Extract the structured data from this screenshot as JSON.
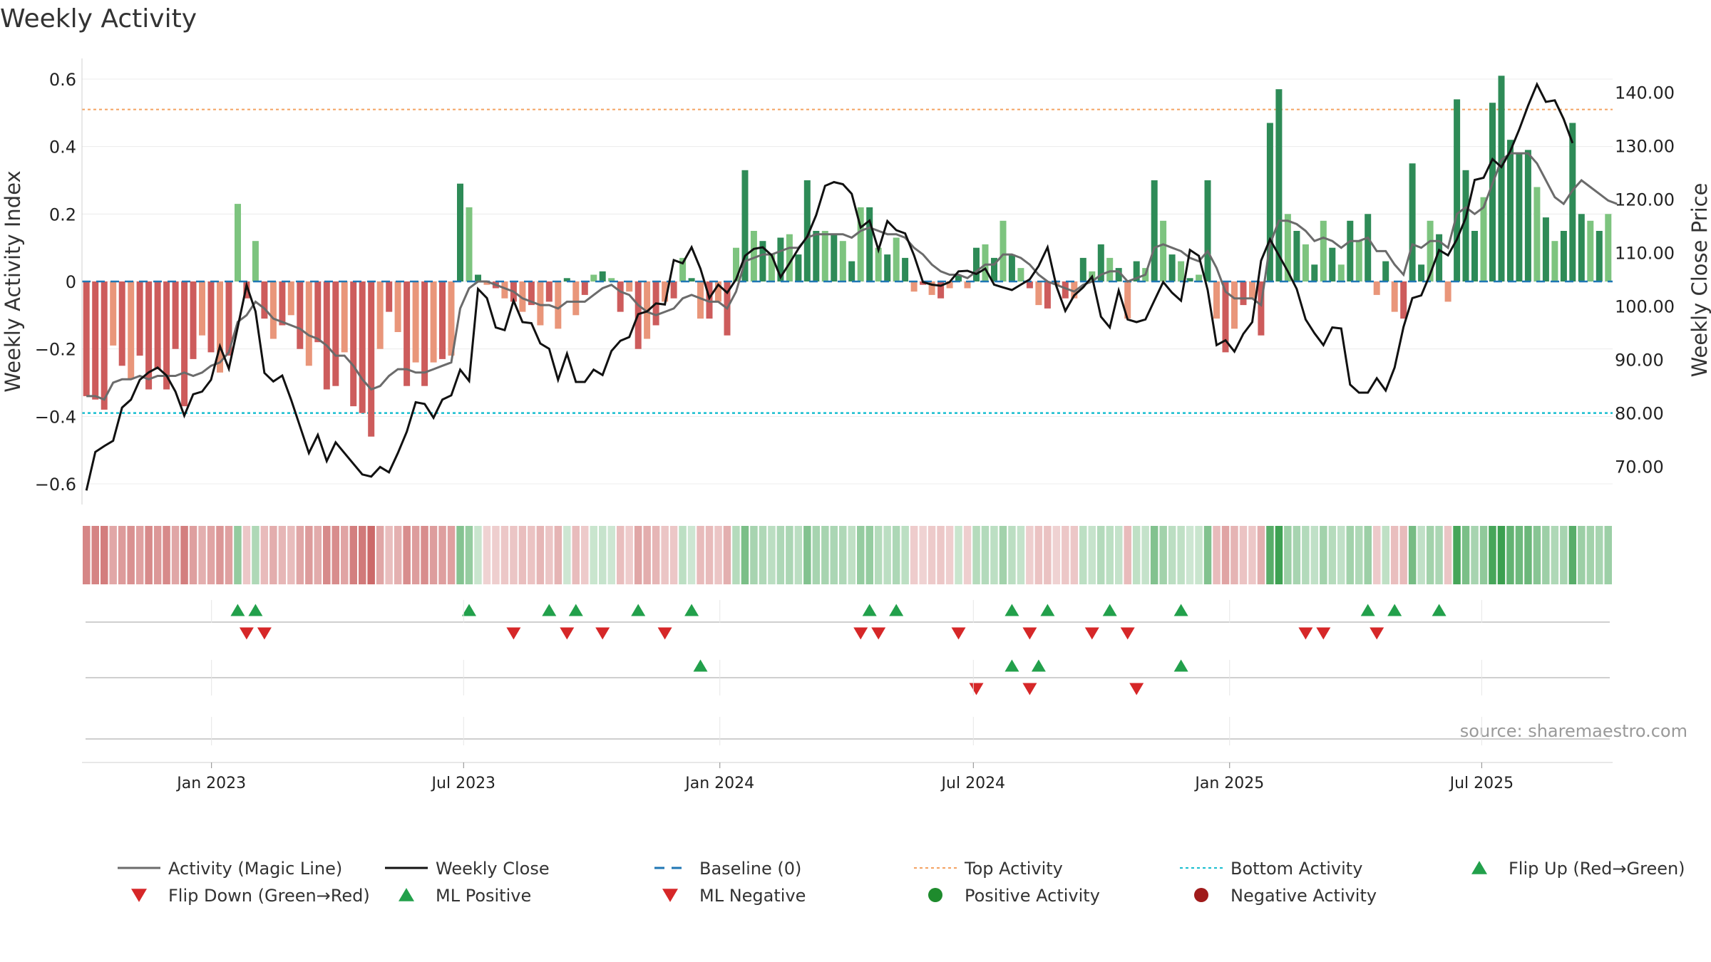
{
  "title": "Weekly Activity",
  "source": "source: sharemaestro.com",
  "colors": {
    "magic_line": "#6b6b6b",
    "close_line": "#111111",
    "baseline": "#1f77b4",
    "top_line": "#f4a261",
    "bottom_line": "#17becf",
    "pos_dark": "#2e8b57",
    "pos_light": "#7dc47f",
    "neg_dark": "#cd5c5c",
    "neg_light": "#e9967a",
    "marker_up": "#22a04b",
    "marker_down": "#d62728",
    "pos_dot": "#1e8b2d",
    "neg_dot": "#a01b1b"
  },
  "chart_data": {
    "type": "bar",
    "title": "Weekly Activity",
    "ylabel_left": "Weekly Activity Index",
    "ylabel_right": "Weekly Close Price",
    "ylim_left": [
      -0.65,
      0.63
    ],
    "ylim_right": [
      63.4,
      146.3
    ],
    "yticks_left": [
      "0.6",
      "0.4",
      "0.2",
      "0",
      "−0.2",
      "−0.4",
      "−0.6"
    ],
    "yticks_left_values": [
      0.6,
      0.4,
      0.2,
      0,
      -0.2,
      -0.4,
      -0.6
    ],
    "yticks_right": [
      "140.00",
      "130.00",
      "120.00",
      "110.00",
      "100.00",
      "90.00",
      "80.00",
      "70.00"
    ],
    "yticks_right_values": [
      140,
      130,
      120,
      110,
      100,
      90,
      80,
      70
    ],
    "x_start": "2022-09-30",
    "x_end": "2025-10-03",
    "x_ticks": [
      {
        "label": "Jan 2023",
        "date": "2023-01-01"
      },
      {
        "label": "Jul 2023",
        "date": "2023-07-01"
      },
      {
        "label": "Jan 2024",
        "date": "2024-01-01"
      },
      {
        "label": "Jul 2024",
        "date": "2024-07-01"
      },
      {
        "label": "Jan 2025",
        "date": "2025-01-01"
      },
      {
        "label": "Jul 2025",
        "date": "2025-07-01"
      }
    ],
    "top_activity": 0.51,
    "bottom_activity": -0.39,
    "baseline": 0,
    "activity": [
      -0.34,
      -0.35,
      -0.38,
      -0.19,
      -0.25,
      -0.29,
      -0.22,
      -0.32,
      -0.26,
      -0.32,
      -0.2,
      -0.37,
      -0.23,
      -0.16,
      -0.21,
      -0.27,
      -0.22,
      0.23,
      -0.05,
      0.12,
      -0.11,
      -0.17,
      -0.13,
      -0.1,
      -0.2,
      -0.25,
      -0.18,
      -0.32,
      -0.31,
      -0.21,
      -0.37,
      -0.39,
      -0.46,
      -0.2,
      -0.09,
      -0.15,
      -0.31,
      -0.24,
      -0.31,
      -0.24,
      -0.23,
      -0.22,
      0.29,
      0.22,
      0.02,
      -0.01,
      -0.02,
      -0.05,
      -0.06,
      -0.09,
      -0.07,
      -0.13,
      -0.06,
      -0.14,
      0.01,
      -0.1,
      -0.04,
      0.02,
      0.03,
      0.01,
      -0.09,
      -0.03,
      -0.2,
      -0.17,
      -0.13,
      -0.06,
      -0.05,
      0.07,
      0.01,
      -0.11,
      -0.11,
      -0.06,
      -0.16,
      0.1,
      0.33,
      0.15,
      0.12,
      0.08,
      0.13,
      0.14,
      0.08,
      0.3,
      0.15,
      0.15,
      0.14,
      0.12,
      0.06,
      0.22,
      0.22,
      0.1,
      0.08,
      0.13,
      0.07,
      -0.03,
      -0.01,
      -0.04,
      -0.05,
      -0.02,
      0.02,
      -0.02,
      0.1,
      0.11,
      0.07,
      0.18,
      0.08,
      0.04,
      -0.02,
      -0.07,
      -0.08,
      -0.01,
      -0.05,
      -0.05,
      0.07,
      0.03,
      0.11,
      0.07,
      0.04,
      -0.11,
      0.06,
      0.04,
      0.3,
      0.18,
      0.08,
      0.06,
      0.01,
      0.02,
      0.3,
      -0.11,
      -0.21,
      -0.14,
      -0.07,
      -0.05,
      -0.16,
      0.47,
      0.57,
      0.2,
      0.15,
      0.11,
      0.05,
      0.18,
      0.1,
      0.05,
      0.18,
      0.12,
      0.2,
      -0.04,
      0.06,
      -0.09,
      -0.11,
      0.35,
      0.05,
      0.18,
      0.14,
      -0.06,
      0.54,
      0.33,
      0.15,
      0.25,
      0.53,
      0.61,
      0.42,
      0.38,
      0.39,
      0.28,
      0.19,
      0.12,
      0.15,
      0.47,
      0.2,
      0.18,
      0.15,
      0.2
    ],
    "magic_line": [
      -0.34,
      -0.34,
      -0.35,
      -0.3,
      -0.29,
      -0.29,
      -0.28,
      -0.29,
      -0.28,
      -0.28,
      -0.28,
      -0.27,
      -0.28,
      -0.27,
      -0.25,
      -0.24,
      -0.21,
      -0.12,
      -0.1,
      -0.06,
      -0.08,
      -0.11,
      -0.12,
      -0.13,
      -0.14,
      -0.16,
      -0.17,
      -0.19,
      -0.22,
      -0.22,
      -0.25,
      -0.29,
      -0.32,
      -0.31,
      -0.28,
      -0.26,
      -0.26,
      -0.27,
      -0.27,
      -0.26,
      -0.25,
      -0.24,
      -0.08,
      -0.02,
      0,
      0,
      -0.01,
      -0.02,
      -0.03,
      -0.05,
      -0.06,
      -0.07,
      -0.07,
      -0.08,
      -0.06,
      -0.06,
      -0.06,
      -0.04,
      -0.02,
      -0.01,
      -0.03,
      -0.04,
      -0.07,
      -0.09,
      -0.1,
      -0.09,
      -0.08,
      -0.05,
      -0.04,
      -0.05,
      -0.06,
      -0.06,
      -0.08,
      -0.03,
      0.06,
      0.07,
      0.08,
      0.08,
      0.09,
      0.1,
      0.1,
      0.13,
      0.14,
      0.14,
      0.14,
      0.14,
      0.13,
      0.15,
      0.16,
      0.15,
      0.14,
      0.14,
      0.13,
      0.1,
      0.08,
      0.05,
      0.03,
      0.02,
      0.02,
      0.01,
      0.03,
      0.05,
      0.05,
      0.08,
      0.08,
      0.07,
      0.05,
      0.02,
      0,
      -0.01,
      -0.02,
      -0.03,
      -0.01,
      0,
      0.02,
      0.03,
      0.03,
      0,
      0.01,
      0.02,
      0.1,
      0.11,
      0.1,
      0.09,
      0.07,
      0.06,
      0.09,
      0.04,
      -0.03,
      -0.05,
      -0.05,
      -0.05,
      -0.07,
      0.11,
      0.18,
      0.18,
      0.17,
      0.15,
      0.12,
      0.13,
      0.12,
      0.1,
      0.12,
      0.12,
      0.13,
      0.09,
      0.09,
      0.05,
      0.02,
      0.11,
      0.1,
      0.12,
      0.12,
      0.1,
      0.2,
      0.22,
      0.2,
      0.22,
      0.29,
      0.36,
      0.38,
      0.38,
      0.38,
      0.35,
      0.3,
      0.25,
      0.23,
      0.27,
      0.3,
      0.28,
      0.26,
      0.24,
      0.23
    ],
    "close": [
      65.5,
      72.7,
      73.8,
      74.8,
      81,
      82.5,
      86.2,
      87.6,
      88.5,
      87,
      84,
      79.5,
      83.5,
      84,
      86.2,
      92.5,
      88.3,
      96,
      103.9,
      99,
      87.5,
      85.9,
      87,
      82.5,
      77.5,
      72.5,
      75.9,
      71,
      74.5,
      72.5,
      70.5,
      68.5,
      68.1,
      69.9,
      68.9,
      72.5,
      76.5,
      82,
      81.7,
      79.1,
      82.5,
      83.3,
      88.1,
      86,
      103.2,
      101.5,
      96,
      95.5,
      101,
      97,
      96.8,
      93,
      92,
      86.2,
      91.1,
      85.8,
      85.8,
      88.1,
      87.1,
      91.6,
      93.5,
      94.2,
      98.5,
      99,
      100.5,
      100.3,
      108.6,
      108,
      111,
      107,
      101.5,
      104,
      102.5,
      105,
      109.4,
      110.7,
      111,
      109.5,
      105.4,
      108,
      110.7,
      113,
      117,
      122.5,
      123.2,
      122.8,
      121,
      114.7,
      116,
      110.5,
      115.9,
      114.2,
      113.6,
      109.5,
      104.5,
      104,
      103.8,
      104.5,
      106.5,
      106.6,
      106,
      107,
      104,
      103.5,
      103,
      104,
      105,
      107.5,
      111,
      103.7,
      99.1,
      102,
      103.5,
      105.5,
      98,
      96,
      102.9,
      97.5,
      97,
      97.5,
      101,
      104.5,
      102.5,
      101,
      110.5,
      109.4,
      103,
      92.7,
      93.6,
      91.5,
      94.8,
      97,
      108.5,
      112.5,
      109.5,
      106.5,
      103.2,
      97.5,
      94.9,
      92.7,
      96,
      95.8,
      85.3,
      83.8,
      83.8,
      86.5,
      84.2,
      88.5,
      96.1,
      101.5,
      102,
      106,
      110.5,
      109.5,
      112.5,
      116.5,
      123.6,
      124,
      127.5,
      126,
      129,
      133,
      137.5,
      141.5,
      138.2,
      138.5,
      135,
      130.5
    ],
    "heat_values": [
      -0.34,
      -0.35,
      -0.38,
      -0.19,
      -0.25,
      -0.29,
      -0.22,
      -0.32,
      -0.26,
      -0.32,
      -0.2,
      -0.37,
      -0.23,
      -0.16,
      -0.21,
      -0.27,
      -0.22,
      0.23,
      -0.05,
      0.12,
      -0.11,
      -0.17,
      -0.13,
      -0.1,
      -0.2,
      -0.25,
      -0.18,
      -0.32,
      -0.31,
      -0.21,
      -0.37,
      -0.39,
      -0.46,
      -0.2,
      -0.09,
      -0.15,
      -0.31,
      -0.24,
      -0.31,
      -0.24,
      -0.23,
      -0.22,
      0.29,
      0.22,
      0.02,
      -0.01,
      -0.02,
      -0.05,
      -0.06,
      -0.09,
      -0.07,
      -0.13,
      -0.06,
      -0.14,
      0.01,
      -0.1,
      -0.04,
      0.02,
      0.03,
      0.01,
      -0.09,
      -0.03,
      -0.2,
      -0.17,
      -0.13,
      -0.06,
      -0.05,
      0.07,
      0.01,
      -0.11,
      -0.11,
      -0.06,
      -0.16,
      0.1,
      0.33,
      0.15,
      0.12,
      0.08,
      0.13,
      0.14,
      0.08,
      0.3,
      0.15,
      0.15,
      0.14,
      0.12,
      0.06,
      0.22,
      0.22,
      0.1,
      0.08,
      0.13,
      0.07,
      -0.03,
      -0.01,
      -0.04,
      -0.05,
      -0.02,
      0.02,
      -0.02,
      0.1,
      0.11,
      0.07,
      0.18,
      0.08,
      0.04,
      -0.02,
      -0.07,
      -0.08,
      -0.01,
      -0.05,
      -0.05,
      0.07,
      0.03,
      0.11,
      0.07,
      0.04,
      -0.11,
      0.06,
      0.04,
      0.3,
      0.18,
      0.08,
      0.06,
      0.01,
      0.02,
      0.3,
      -0.11,
      -0.21,
      -0.14,
      -0.07,
      -0.05,
      -0.16,
      0.47,
      0.57,
      0.2,
      0.15,
      0.11,
      0.05,
      0.18,
      0.1,
      0.05,
      0.18,
      0.12,
      0.2,
      -0.04,
      0.06,
      -0.09,
      -0.11,
      0.35,
      0.05,
      0.18,
      0.14,
      -0.06,
      0.54,
      0.33,
      0.15,
      0.25,
      0.53,
      0.61,
      0.42,
      0.38,
      0.39,
      0.28,
      0.19,
      0.12,
      0.15,
      0.47,
      0.2,
      0.18,
      0.15,
      0.2
    ],
    "flip_up_weeks": [
      17,
      19,
      43,
      52,
      55,
      62,
      68,
      88,
      91,
      104,
      108,
      115,
      123,
      144,
      147,
      152
    ],
    "flip_down_weeks": [
      18,
      20,
      48,
      54,
      58,
      65,
      87,
      89,
      98,
      106,
      113,
      117,
      137,
      139,
      145
    ],
    "ml_positive_weeks": [
      69,
      104,
      107,
      123
    ],
    "ml_negative_weeks": [
      100,
      106,
      118
    ],
    "legend": [
      {
        "label": "Activity (Magic Line)",
        "kind": "line",
        "color_key": "magic_line"
      },
      {
        "label": "Weekly Close",
        "kind": "line",
        "color_key": "close_line"
      },
      {
        "label": "Baseline (0)",
        "kind": "dash",
        "color_key": "baseline"
      },
      {
        "label": "Top Activity",
        "kind": "dot",
        "color_key": "top_line"
      },
      {
        "label": "Bottom Activity",
        "kind": "dot",
        "color_key": "bottom_line"
      },
      {
        "label": "Flip Up (Red→Green)",
        "kind": "tri-up",
        "color_key": "marker_up"
      },
      {
        "label": "Flip Down (Green→Red)",
        "kind": "tri-down",
        "color_key": "marker_down"
      },
      {
        "label": "ML Positive",
        "kind": "tri-up",
        "color_key": "marker_up"
      },
      {
        "label": "ML Negative",
        "kind": "tri-down",
        "color_key": "marker_down"
      },
      {
        "label": "Positive Activity",
        "kind": "circle",
        "color_key": "pos_dot"
      },
      {
        "label": "Negative Activity",
        "kind": "circle",
        "color_key": "neg_dot"
      }
    ]
  }
}
